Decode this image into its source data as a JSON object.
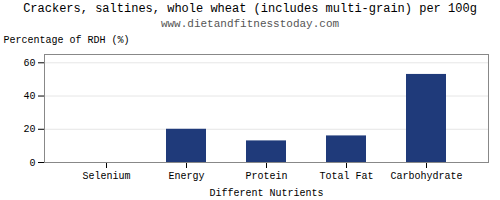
{
  "chart_data": {
    "type": "bar",
    "title": "Crackers, saltines, whole wheat (includes multi-grain) per 100g",
    "subtitle": "www.dietandfitnesstoday.com",
    "xlabel": "Different Nutrients",
    "ylabel": "Percentage of RDH (%)",
    "categories": [
      "Selenium",
      "Energy",
      "Protein",
      "Total Fat",
      "Carbohydrate"
    ],
    "values": [
      0,
      20,
      13,
      16,
      53
    ],
    "color": "#1f3a7a",
    "ylim": [
      0,
      65
    ],
    "yticks": [
      0,
      20,
      40,
      60
    ],
    "grid": true
  }
}
